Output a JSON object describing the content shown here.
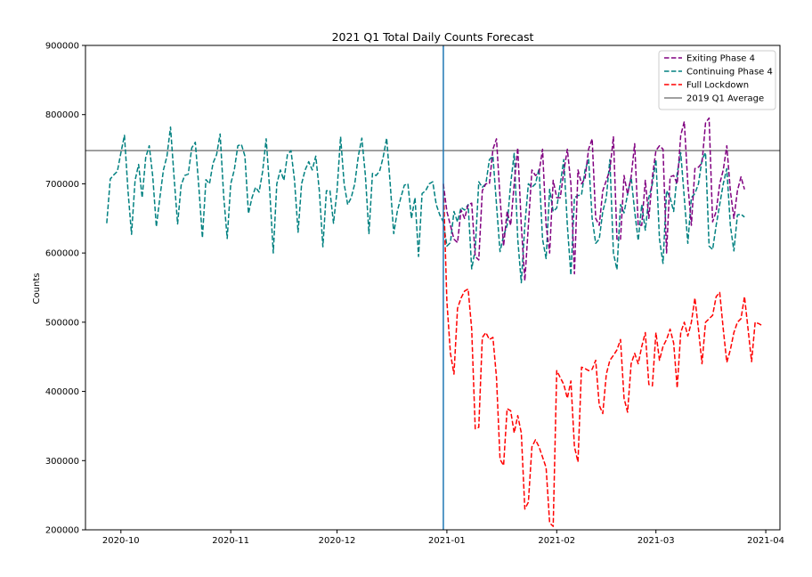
{
  "chart_data": {
    "type": "line",
    "title": "2021 Q1 Total Daily Counts Forecast",
    "xlabel": "",
    "ylabel": "Counts",
    "xlim": [
      "2020-09-21",
      "2021-04-05"
    ],
    "ylim": [
      200000,
      900000
    ],
    "x_ticks": [
      "2020-10",
      "2020-11",
      "2020-12",
      "2021-01",
      "2021-02",
      "2021-03",
      "2021-04"
    ],
    "y_ticks": [
      "200000",
      "300000",
      "400000",
      "500000",
      "600000",
      "700000",
      "800000",
      "900000"
    ],
    "grid": false,
    "legend_position": "top-right",
    "vline": {
      "x": "2020-12-31",
      "color": "#1f77b4"
    },
    "hline": {
      "name": "2019 Q1 Average",
      "y": 748000,
      "color": "#808080"
    },
    "series": [
      {
        "name": "Exiting Phase 4",
        "color": "#800080",
        "x_start": "2020-12-31",
        "values": [
          700000,
          660000,
          640000,
          620000,
          615000,
          662000,
          650000,
          670000,
          672000,
          595000,
          590000,
          690000,
          700000,
          700000,
          750000,
          765000,
          680000,
          610000,
          660000,
          640000,
          700000,
          752000,
          640000,
          560000,
          640000,
          720000,
          712000,
          716000,
          750000,
          640000,
          600000,
          705000,
          680000,
          680000,
          718000,
          750000,
          700000,
          570000,
          720000,
          700000,
          708000,
          750000,
          765000,
          650000,
          640000,
          690000,
          705000,
          720000,
          768000,
          620000,
          620000,
          712000,
          685000,
          710000,
          758000,
          640000,
          640000,
          705000,
          650000,
          710000,
          748000,
          755000,
          750000,
          600000,
          710000,
          712000,
          700000,
          770000,
          790000,
          700000,
          640000,
          722000,
          724000,
          730000,
          788000,
          795000,
          645000,
          660000,
          700000,
          720000,
          755000,
          690000,
          650000,
          690000,
          710000,
          692000
        ]
      },
      {
        "name": "Continuing Phase 4",
        "color": "#008080",
        "x_start": "2020-09-27",
        "values": [
          643000,
          707000,
          713000,
          718000,
          745000,
          770000,
          690000,
          627000,
          705000,
          728000,
          680000,
          738000,
          755000,
          710000,
          638000,
          680000,
          720000,
          740000,
          782000,
          710000,
          642000,
          698000,
          712000,
          714000,
          752000,
          760000,
          695000,
          622000,
          706000,
          700000,
          730000,
          742000,
          772000,
          683000,
          621000,
          700000,
          720000,
          755000,
          757000,
          740000,
          657000,
          680000,
          695000,
          688000,
          718000,
          765000,
          690000,
          600000,
          700000,
          720000,
          705000,
          742000,
          748000,
          705000,
          630000,
          700000,
          720000,
          732000,
          720000,
          740000,
          690000,
          609000,
          690000,
          690000,
          643000,
          690000,
          768000,
          700000,
          670000,
          680000,
          700000,
          740000,
          766000,
          712000,
          628000,
          715000,
          712000,
          718000,
          738000,
          766000,
          700000,
          628000,
          660000,
          680000,
          698000,
          700000,
          650000,
          680000,
          595000,
          686000,
          690000,
          700000,
          703000,
          670000,
          655000,
          645000,
          610000,
          615000,
          660000,
          645000,
          666000,
          662000,
          670000,
          577000,
          605000,
          703000,
          695000,
          700000,
          735000,
          740000,
          670000,
          602000,
          625000,
          640000,
          700000,
          744000,
          620000,
          557000,
          640000,
          700000,
          695000,
          700000,
          722000,
          620000,
          592000,
          692000,
          660000,
          665000,
          700000,
          735000,
          640000,
          568000,
          680000,
          683000,
          684000,
          720000,
          735000,
          650000,
          614000,
          620000,
          660000,
          680000,
          735000,
          600000,
          576000,
          670000,
          658000,
          685000,
          710000,
          660000,
          618000,
          670000,
          633000,
          680000,
          700000,
          735000,
          620000,
          585000,
          690000,
          680000,
          660000,
          715000,
          745000,
          680000,
          614000,
          680000,
          686000,
          700000,
          735000,
          745000,
          610000,
          605000,
          640000,
          670000,
          700000,
          722000,
          640000,
          603000,
          655000,
          656000,
          652000
        ]
      },
      {
        "name": "Full Lockdown",
        "color": "#ff0000",
        "x_start": "2020-12-31",
        "values": [
          700000,
          530000,
          455000,
          425000,
          520000,
          535000,
          545000,
          548000,
          490000,
          346000,
          348000,
          478000,
          485000,
          475000,
          478000,
          420000,
          302000,
          293000,
          375000,
          372000,
          340000,
          365000,
          340000,
          230000,
          240000,
          320000,
          330000,
          320000,
          305000,
          290000,
          210000,
          205000,
          430000,
          420000,
          410000,
          390000,
          415000,
          320000,
          298000,
          435000,
          433000,
          430000,
          432000,
          445000,
          380000,
          368000,
          425000,
          445000,
          452000,
          460000,
          475000,
          390000,
          370000,
          440000,
          455000,
          440000,
          465000,
          485000,
          410000,
          408000,
          485000,
          445000,
          465000,
          475000,
          490000,
          470000,
          405000,
          485000,
          500000,
          480000,
          500000,
          535000,
          490000,
          440000,
          500000,
          505000,
          510000,
          537000,
          543000,
          490000,
          442000,
          460000,
          485000,
          500000,
          505000,
          537000,
          490000,
          443000,
          500000,
          498000,
          495000
        ]
      }
    ]
  }
}
